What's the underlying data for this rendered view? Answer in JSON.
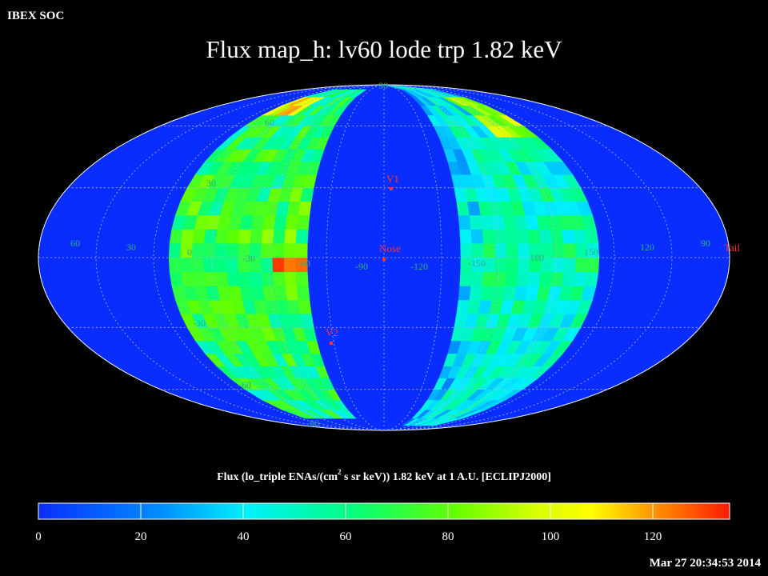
{
  "header": {
    "org": "IBEX SOC",
    "title": "Flux map_h: lv60 lode trp 1.82 keV",
    "timestamp": "Mar 27 20:34:53 2014"
  },
  "map": {
    "projection": "Mollweide (Aitoff-like all-sky ellipse)",
    "background_color": "#0a2dff",
    "grid_color": "#9aa6d8",
    "longitude_labels": [
      "60",
      "30",
      "0",
      "-30",
      "-60",
      "-90",
      "-120",
      "-150",
      "180",
      "150",
      "120",
      "90"
    ],
    "latitude_labels": [
      "90",
      "60",
      "30",
      "-30",
      "-60",
      "-90"
    ],
    "markers": [
      {
        "label": "V1",
        "color": "#ff2a2a"
      },
      {
        "label": "Nose",
        "color": "#ff2a2a"
      },
      {
        "label": "V2",
        "color": "#ff2a2a"
      },
      {
        "label": "Tail",
        "color": "#ff2a2a"
      }
    ]
  },
  "colorbar": {
    "label_prefix": "Flux (lo_triple ENAs/(cm",
    "label_sup": "2",
    "label_suffix": " s sr keV)) 1.82 keV at 1 A.U. [ECLIPJ2000]",
    "min": 0,
    "max": 135,
    "ticks": [
      "0",
      "20",
      "40",
      "60",
      "80",
      "100",
      "120"
    ],
    "colors": [
      "#0a2dff",
      "#00c8ff",
      "#00ff60",
      "#c8ff00",
      "#ffff00",
      "#ff8000",
      "#ff1a00"
    ]
  }
}
